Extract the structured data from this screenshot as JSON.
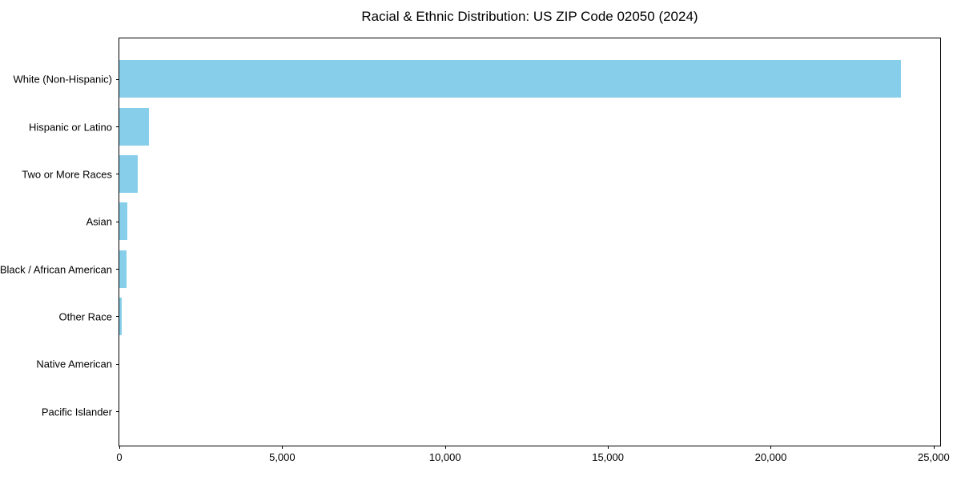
{
  "chart_data": {
    "type": "bar",
    "orientation": "horizontal",
    "title": "Racial & Ethnic Distribution: US ZIP Code 02050 (2024)",
    "categories": [
      "White (Non-Hispanic)",
      "Hispanic or Latino",
      "Two or More Races",
      "Asian",
      "Black / African American",
      "Other Race",
      "Native American",
      "Pacific Islander"
    ],
    "values": [
      24000,
      900,
      560,
      250,
      230,
      70,
      0,
      0
    ],
    "xlabel": "",
    "ylabel": "",
    "xlim": [
      0,
      25200
    ],
    "xticks": [
      0,
      5000,
      10000,
      15000,
      20000,
      25000
    ],
    "xtick_labels": [
      "0",
      "5,000",
      "10,000",
      "15,000",
      "20,000",
      "25,000"
    ],
    "bar_color": "#87CEEB",
    "frame_color": "#000000",
    "background_color": "#ffffff",
    "grid": false,
    "legend": null
  }
}
